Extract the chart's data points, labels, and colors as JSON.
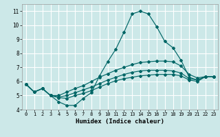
{
  "xlabel": "Humidex (Indice chaleur)",
  "ylabel": "",
  "bg_color": "#cce8e8",
  "grid_color": "#ffffff",
  "line_color": "#006666",
  "xlim": [
    -0.5,
    23.5
  ],
  "ylim": [
    4,
    11.5
  ],
  "xticks": [
    0,
    1,
    2,
    3,
    4,
    5,
    6,
    7,
    8,
    9,
    10,
    11,
    12,
    13,
    14,
    15,
    16,
    17,
    18,
    19,
    20,
    21,
    22,
    23
  ],
  "yticks": [
    4,
    5,
    6,
    7,
    8,
    9,
    10,
    11
  ],
  "line1_x": [
    0,
    1,
    2,
    3,
    4,
    5,
    6,
    7,
    8,
    9,
    10,
    11,
    12,
    13,
    14,
    15,
    16,
    17,
    18,
    19,
    20,
    21,
    22,
    23
  ],
  "line1_y": [
    5.8,
    5.25,
    5.5,
    5.0,
    4.55,
    4.3,
    4.3,
    4.8,
    5.2,
    6.4,
    7.4,
    8.3,
    9.5,
    10.8,
    11.0,
    10.8,
    9.9,
    8.85,
    8.4,
    7.5,
    6.3,
    6.1,
    6.35,
    6.35
  ],
  "line2_x": [
    0,
    1,
    2,
    3,
    4,
    5,
    6,
    7,
    8,
    9,
    10,
    11,
    12,
    13,
    14,
    15,
    16,
    17,
    18,
    19,
    20,
    21,
    22,
    23
  ],
  "line2_y": [
    5.8,
    5.25,
    5.5,
    5.0,
    5.0,
    5.25,
    5.5,
    5.7,
    6.0,
    6.3,
    6.55,
    6.8,
    7.0,
    7.2,
    7.35,
    7.4,
    7.45,
    7.45,
    7.4,
    7.1,
    6.5,
    6.25,
    6.35,
    6.35
  ],
  "line3_x": [
    0,
    1,
    2,
    3,
    4,
    5,
    6,
    7,
    8,
    9,
    10,
    11,
    12,
    13,
    14,
    15,
    16,
    17,
    18,
    19,
    20,
    21,
    22,
    23
  ],
  "line3_y": [
    5.8,
    5.25,
    5.5,
    5.0,
    4.9,
    5.0,
    5.2,
    5.4,
    5.6,
    5.85,
    6.1,
    6.3,
    6.5,
    6.65,
    6.75,
    6.8,
    6.8,
    6.8,
    6.75,
    6.6,
    6.2,
    6.1,
    6.35,
    6.35
  ],
  "line4_x": [
    0,
    1,
    2,
    3,
    4,
    5,
    6,
    7,
    8,
    9,
    10,
    11,
    12,
    13,
    14,
    15,
    16,
    17,
    18,
    19,
    20,
    21,
    22,
    23
  ],
  "line4_y": [
    5.8,
    5.25,
    5.5,
    5.0,
    4.85,
    4.8,
    5.0,
    5.15,
    5.35,
    5.6,
    5.85,
    6.05,
    6.2,
    6.3,
    6.4,
    6.45,
    6.5,
    6.5,
    6.5,
    6.4,
    6.1,
    6.0,
    6.35,
    6.35
  ]
}
